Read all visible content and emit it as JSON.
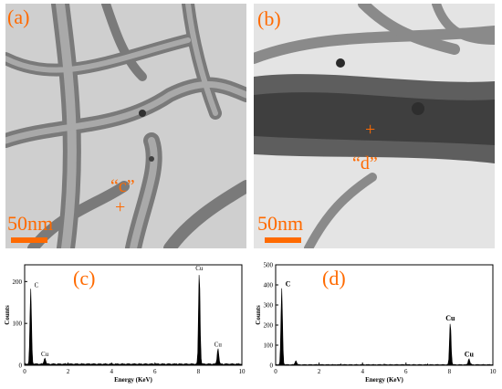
{
  "panels": {
    "a": {
      "label": "(a)",
      "scale": "50nm",
      "marker": "“c”"
    },
    "b": {
      "label": "(b)",
      "scale": "50nm",
      "marker": "“d”"
    },
    "c": {
      "label": "(c)"
    },
    "d": {
      "label": "(d)"
    }
  },
  "colors": {
    "accent": "#ff6a00",
    "tem_bg": "#c9c9c9",
    "spectrum": "#000000"
  },
  "chart_data": [
    {
      "type": "area",
      "panel": "c",
      "xlabel": "Energy (KeV)",
      "ylabel": "Counts",
      "xlim": [
        0,
        10
      ],
      "ylim": [
        0,
        240
      ],
      "xticks": [
        "0",
        "2",
        "4",
        "6",
        "8",
        "10"
      ],
      "yticks": [
        "0",
        "100",
        "200"
      ],
      "peaks": [
        {
          "x": 0.28,
          "y": 180,
          "label": "C"
        },
        {
          "x": 0.93,
          "y": 15,
          "label": "Cu"
        },
        {
          "x": 8.04,
          "y": 220,
          "label": "Cu"
        },
        {
          "x": 8.9,
          "y": 38,
          "label": "Cu"
        }
      ]
    },
    {
      "type": "area",
      "panel": "d",
      "xlabel": "Energy (KeV)",
      "ylabel": "Counts",
      "xlim": [
        0,
        10
      ],
      "ylim": [
        0,
        500
      ],
      "xticks": [
        "0",
        "2",
        "4",
        "6",
        "8",
        "10"
      ],
      "yticks": [
        "0",
        "100",
        "200",
        "300",
        "400",
        "500"
      ],
      "peaks": [
        {
          "x": 0.28,
          "y": 380,
          "label": "C"
        },
        {
          "x": 0.93,
          "y": 20,
          "label": ""
        },
        {
          "x": 8.04,
          "y": 210,
          "label": "Cu"
        },
        {
          "x": 8.9,
          "y": 30,
          "label": "Cu"
        }
      ]
    }
  ]
}
